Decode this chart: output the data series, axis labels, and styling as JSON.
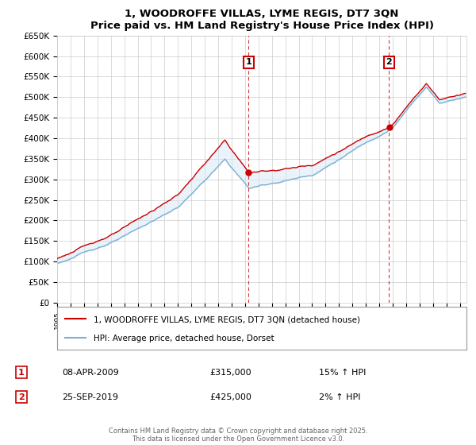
{
  "title": "1, WOODROFFE VILLAS, LYME REGIS, DT7 3QN",
  "subtitle": "Price paid vs. HM Land Registry's House Price Index (HPI)",
  "ylim": [
    0,
    650000
  ],
  "yticks": [
    0,
    50000,
    100000,
    150000,
    200000,
    250000,
    300000,
    350000,
    400000,
    450000,
    500000,
    550000,
    600000,
    650000
  ],
  "ytick_labels": [
    "£0",
    "£50K",
    "£100K",
    "£150K",
    "£200K",
    "£250K",
    "£300K",
    "£350K",
    "£400K",
    "£450K",
    "£500K",
    "£550K",
    "£600K",
    "£650K"
  ],
  "xlim_start": 1995.0,
  "xlim_end": 2025.5,
  "line_color_house": "#cc0000",
  "line_color_hpi": "#7bafd4",
  "fill_color": "#d6e8f5",
  "sale1_year": 2009.27,
  "sale1_price": 315000,
  "sale1_label": "1",
  "sale1_date": "08-APR-2009",
  "sale1_hpi_pct": "15% ↑ HPI",
  "sale2_year": 2019.73,
  "sale2_price": 425000,
  "sale2_label": "2",
  "sale2_date": "25-SEP-2019",
  "sale2_hpi_pct": "2% ↑ HPI",
  "legend_house": "1, WOODROFFE VILLAS, LYME REGIS, DT7 3QN (detached house)",
  "legend_hpi": "HPI: Average price, detached house, Dorset",
  "footer": "Contains HM Land Registry data © Crown copyright and database right 2025.\nThis data is licensed under the Open Government Licence v3.0.",
  "background_color": "#ffffff",
  "grid_color": "#cccccc",
  "marker_box_color": "#cc0000"
}
